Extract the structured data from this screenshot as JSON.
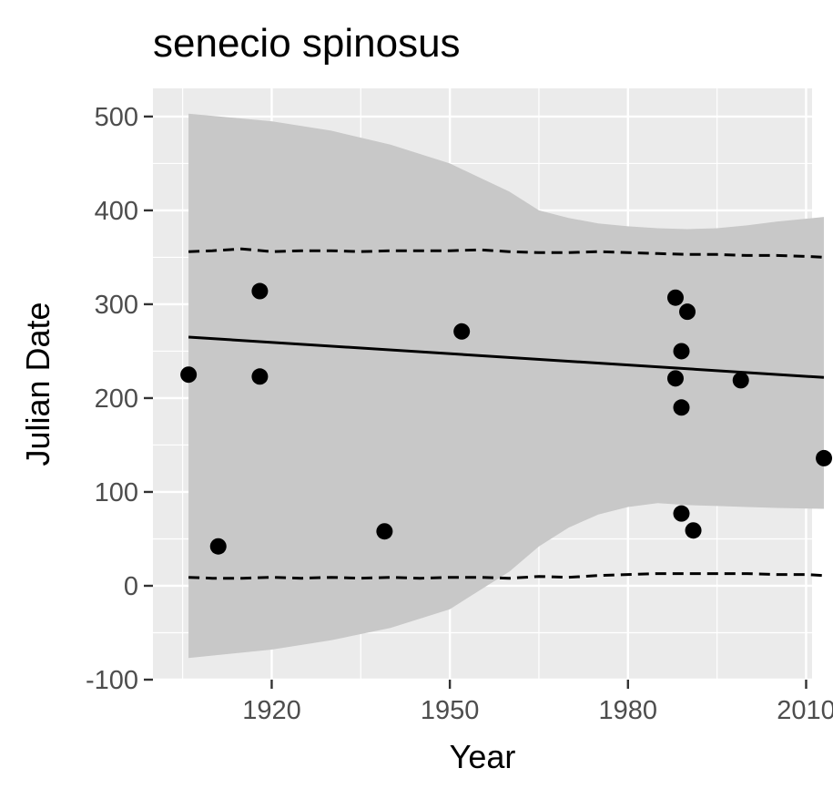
{
  "chart_data": {
    "type": "scatter",
    "title": "senecio spinosus",
    "xlabel": "Year",
    "ylabel": "Julian Date",
    "xlim": [
      1900,
      2011
    ],
    "ylim": [
      -100,
      530
    ],
    "xticks": [
      1920,
      1950,
      1980,
      2010
    ],
    "xtick_labels": [
      "1920",
      "1950",
      "1980",
      "2010"
    ],
    "yticks": [
      -100,
      0,
      100,
      200,
      300,
      400,
      500
    ],
    "ytick_labels": [
      "-100",
      "0",
      "100",
      "200",
      "300",
      "400",
      "500"
    ],
    "grid": true,
    "legend": "none",
    "points": {
      "x": [
        1906,
        1911,
        1918,
        1918,
        1939,
        1952,
        1988,
        1988,
        1989,
        1989,
        1989,
        1990,
        1991,
        1999,
        2013
      ],
      "y": [
        225,
        42,
        314,
        223,
        58,
        271,
        307,
        221,
        250,
        190,
        77,
        292,
        59,
        219,
        136
      ]
    },
    "fit_line": {
      "x": [
        1906,
        2013
      ],
      "y": [
        265,
        222
      ]
    },
    "confidence_band": {
      "x": [
        1906,
        1920,
        1930,
        1940,
        1950,
        1960,
        1965,
        1970,
        1975,
        1980,
        1985,
        1990,
        1995,
        2000,
        2005,
        2013
      ],
      "upper": [
        503,
        495,
        485,
        470,
        450,
        420,
        400,
        392,
        386,
        383,
        381,
        380,
        381,
        384,
        388,
        393
      ],
      "lower": [
        -77,
        -68,
        -58,
        -45,
        -25,
        15,
        42,
        62,
        76,
        84,
        88,
        86,
        85,
        84,
        83,
        82
      ]
    },
    "upper_dashed": {
      "x": [
        1906,
        1910,
        1915,
        1920,
        1925,
        1930,
        1935,
        1940,
        1945,
        1950,
        1955,
        1960,
        1965,
        1970,
        1975,
        1980,
        1985,
        1990,
        1995,
        2000,
        2005,
        2010,
        2013
      ],
      "y": [
        356,
        357,
        359,
        356,
        357,
        357,
        356,
        357,
        357,
        357,
        358,
        356,
        355,
        355,
        356,
        355,
        354,
        353,
        353,
        352,
        352,
        351,
        350
      ]
    },
    "lower_dashed": {
      "x": [
        1906,
        1910,
        1915,
        1920,
        1925,
        1930,
        1935,
        1940,
        1945,
        1950,
        1955,
        1960,
        1965,
        1970,
        1975,
        1980,
        1985,
        1990,
        1995,
        2000,
        2005,
        2010,
        2013
      ],
      "y": [
        9,
        8,
        8,
        9,
        8,
        9,
        8,
        9,
        8,
        9,
        9,
        8,
        10,
        9,
        11,
        12,
        13,
        13,
        13,
        13,
        12,
        12,
        11
      ]
    },
    "colors": {
      "panel": "#ebebeb",
      "grid_major": "#ffffff",
      "band": "#c8c8c8",
      "points": "#000000",
      "line": "#000000"
    }
  }
}
